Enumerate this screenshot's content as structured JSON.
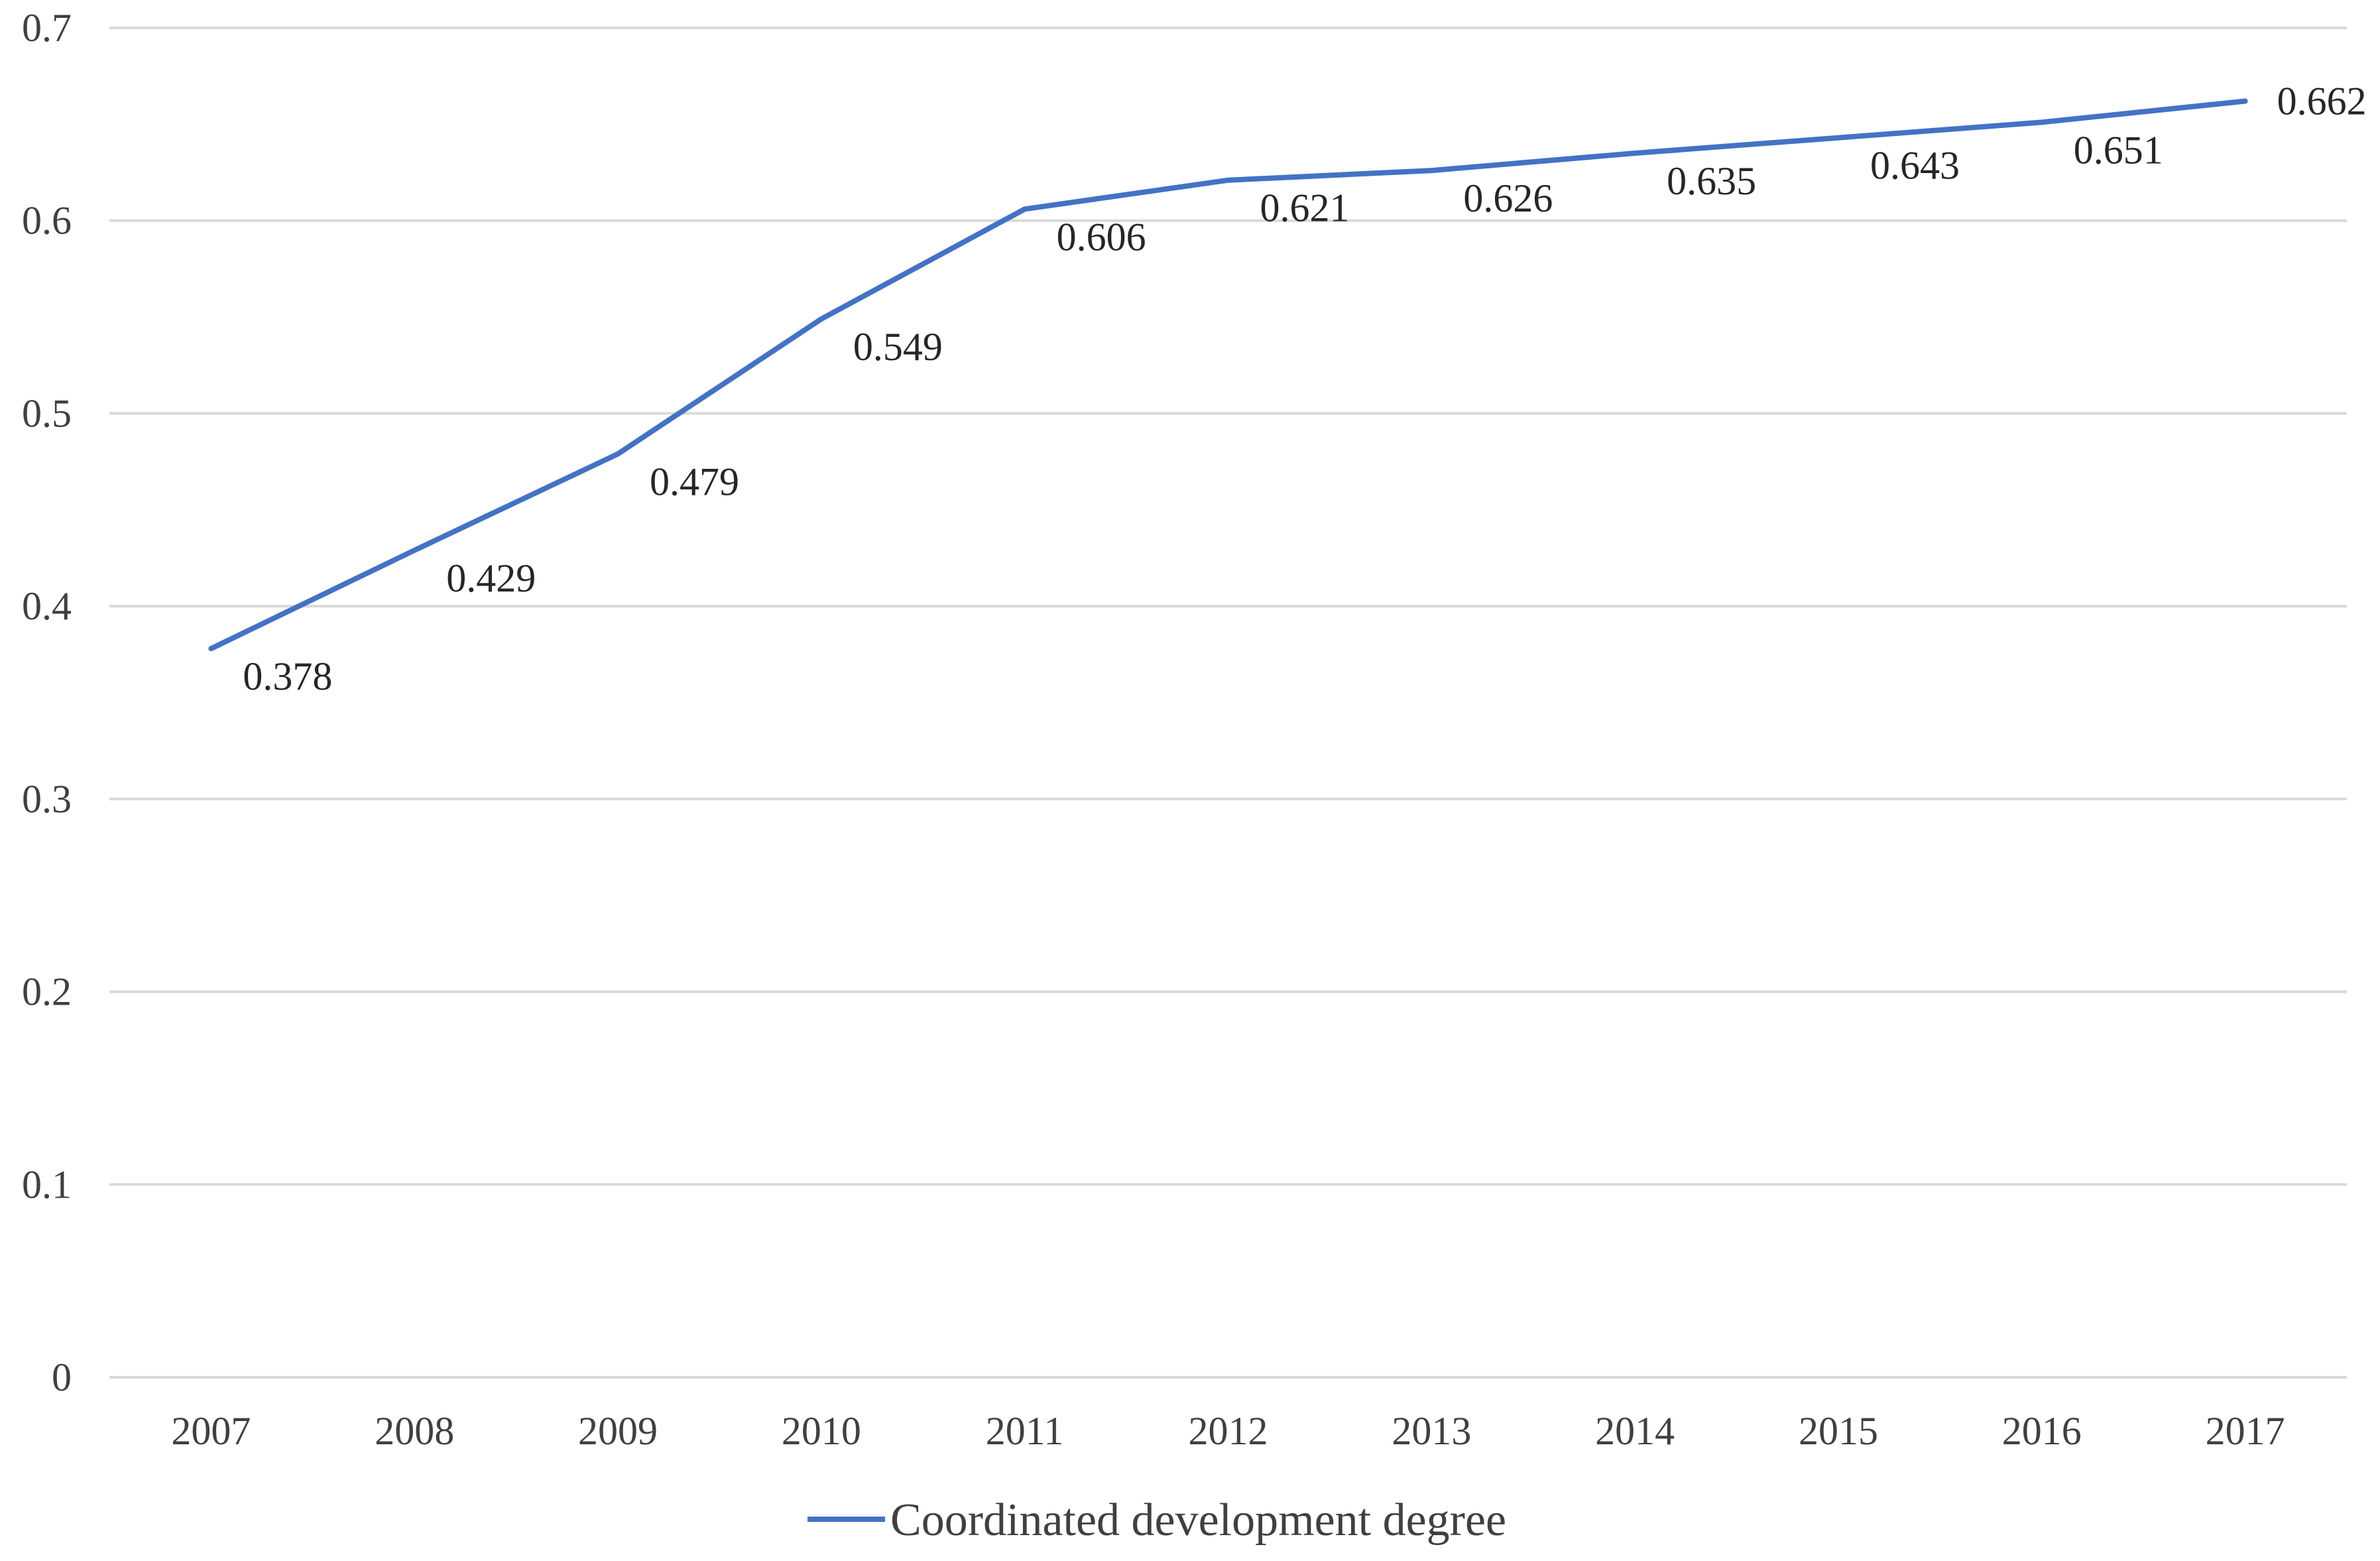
{
  "chart_data": {
    "type": "line",
    "title": "",
    "xlabel": "",
    "ylabel": "",
    "categories": [
      "2007",
      "2008",
      "2009",
      "2010",
      "2011",
      "2012",
      "2013",
      "2014",
      "2015",
      "2016",
      "2017"
    ],
    "series": [
      {
        "name": "Coordinated development degree",
        "color": "#4472c4",
        "values": [
          0.378,
          0.429,
          0.479,
          0.549,
          0.606,
          0.621,
          0.626,
          0.635,
          0.643,
          0.651,
          0.662
        ],
        "data_labels": [
          "0.378",
          "0.429",
          "0.479",
          "0.549",
          "0.606",
          "0.621",
          "0.626",
          "0.635",
          "0.643",
          "0.651",
          "0.662"
        ]
      }
    ],
    "ylim": [
      0,
      0.7
    ],
    "y_ticks": [
      0,
      0.1,
      0.2,
      0.3,
      0.4,
      0.5,
      0.6,
      0.7
    ],
    "y_tick_labels": [
      "0",
      "0.1",
      "0.2",
      "0.3",
      "0.4",
      "0.5",
      "0.6",
      "0.7"
    ],
    "grid": true,
    "legend_position": "bottom-center"
  }
}
